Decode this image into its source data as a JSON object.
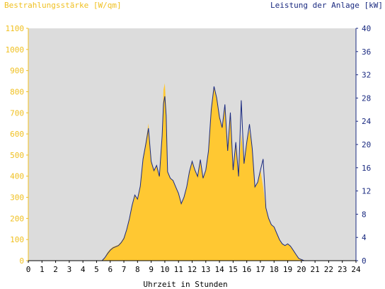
{
  "chart_data": {
    "type": "area",
    "title_left": "Bestrahlungsstärke [W/qm]",
    "title_right": "Leistung der Anlage [kW]",
    "xlabel": "Uhrzeit in Stunden",
    "x_range": [
      0,
      24
    ],
    "x_ticks": [
      "0",
      "1",
      "2",
      "3",
      "4",
      "5",
      "6",
      "7",
      "8",
      "9",
      "10",
      "11",
      "12",
      "13",
      "14",
      "15",
      "16",
      "17",
      "18",
      "19",
      "20",
      "21",
      "22",
      "23",
      "24"
    ],
    "y_left": {
      "label": "Bestrahlungsstärke [W/qm]",
      "range": [
        0,
        1100
      ],
      "ticks": [
        "0",
        "100",
        "200",
        "300",
        "400",
        "500",
        "600",
        "700",
        "800",
        "900",
        "1000",
        "1100"
      ]
    },
    "y_right": {
      "label": "Leistung der Anlage [kW]",
      "range": [
        0,
        40
      ],
      "ticks": [
        "0",
        "4",
        "8",
        "12",
        "16",
        "20",
        "24",
        "28",
        "32",
        "36",
        "40"
      ]
    },
    "grid": false,
    "plot_background": "#dcdcdc",
    "series": [
      {
        "axis": "left",
        "style": "filled-area",
        "color": "#ffc832",
        "x": [
          0,
          5.4,
          5.6,
          5.8,
          6.0,
          6.2,
          6.4,
          6.6,
          6.8,
          7.0,
          7.2,
          7.4,
          7.6,
          7.8,
          8.0,
          8.2,
          8.4,
          8.6,
          8.8,
          9.0,
          9.2,
          9.4,
          9.6,
          9.8,
          9.9,
          10.0,
          10.1,
          10.2,
          10.4,
          10.6,
          10.8,
          11.0,
          11.2,
          11.4,
          11.6,
          11.8,
          12.0,
          12.2,
          12.4,
          12.6,
          12.8,
          13.0,
          13.2,
          13.4,
          13.6,
          13.8,
          14.0,
          14.2,
          14.4,
          14.6,
          14.8,
          15.0,
          15.2,
          15.4,
          15.6,
          15.8,
          16.0,
          16.2,
          16.4,
          16.6,
          16.8,
          17.0,
          17.2,
          17.4,
          17.6,
          17.8,
          18.0,
          18.2,
          18.4,
          18.6,
          18.8,
          19.0,
          19.2,
          19.4,
          19.6,
          19.8,
          20.0,
          20.2,
          24
        ],
        "y": [
          0,
          0,
          15,
          40,
          55,
          65,
          70,
          75,
          90,
          110,
          150,
          200,
          260,
          310,
          290,
          350,
          480,
          560,
          650,
          470,
          430,
          450,
          400,
          600,
          810,
          840,
          720,
          420,
          390,
          380,
          350,
          320,
          270,
          300,
          350,
          420,
          470,
          430,
          400,
          480,
          390,
          430,
          520,
          720,
          820,
          770,
          680,
          630,
          740,
          520,
          700,
          430,
          560,
          400,
          600,
          460,
          560,
          620,
          530,
          350,
          370,
          430,
          350,
          250,
          200,
          170,
          160,
          130,
          100,
          80,
          70,
          80,
          70,
          50,
          30,
          10,
          5,
          0,
          0
        ]
      },
      {
        "axis": "right",
        "style": "line",
        "color": "#1a2a80",
        "x": [
          0,
          5.4,
          5.6,
          5.8,
          6.0,
          6.2,
          6.4,
          6.6,
          6.8,
          7.0,
          7.2,
          7.4,
          7.6,
          7.8,
          8.0,
          8.2,
          8.4,
          8.6,
          8.8,
          9.0,
          9.2,
          9.4,
          9.6,
          9.8,
          9.9,
          10.0,
          10.1,
          10.2,
          10.4,
          10.6,
          10.8,
          11.0,
          11.2,
          11.4,
          11.6,
          11.8,
          12.0,
          12.2,
          12.4,
          12.6,
          12.8,
          13.0,
          13.2,
          13.4,
          13.6,
          13.8,
          14.0,
          14.2,
          14.4,
          14.6,
          14.8,
          15.0,
          15.2,
          15.4,
          15.6,
          15.8,
          16.0,
          16.2,
          16.4,
          16.6,
          16.8,
          17.0,
          17.2,
          17.4,
          17.6,
          17.8,
          18.0,
          18.2,
          18.4,
          18.6,
          18.8,
          19.0,
          19.2,
          19.4,
          19.6,
          19.8,
          20.0,
          20.2,
          24
        ],
        "y": [
          0,
          0,
          0.5,
          1.2,
          1.8,
          2.2,
          2.4,
          2.6,
          3.1,
          3.8,
          5.3,
          7.2,
          9.5,
          11.3,
          10.6,
          12.8,
          17.5,
          20.0,
          22.8,
          17.1,
          15.5,
          16.4,
          14.5,
          21.5,
          27.0,
          28.3,
          25.0,
          15.3,
          14.2,
          13.8,
          12.7,
          11.6,
          9.8,
          10.9,
          12.7,
          15.3,
          17.1,
          15.6,
          14.5,
          17.4,
          14.2,
          15.6,
          18.9,
          26.0,
          30.0,
          28.0,
          24.7,
          22.9,
          26.9,
          18.9,
          25.5,
          15.6,
          20.4,
          14.5,
          27.6,
          16.7,
          20.4,
          23.5,
          19.3,
          12.7,
          13.5,
          15.6,
          17.5,
          9.1,
          7.3,
          6.2,
          5.8,
          4.7,
          3.6,
          2.9,
          2.6,
          2.9,
          2.5,
          1.8,
          1.1,
          0.4,
          0.2,
          0,
          0
        ]
      }
    ]
  }
}
